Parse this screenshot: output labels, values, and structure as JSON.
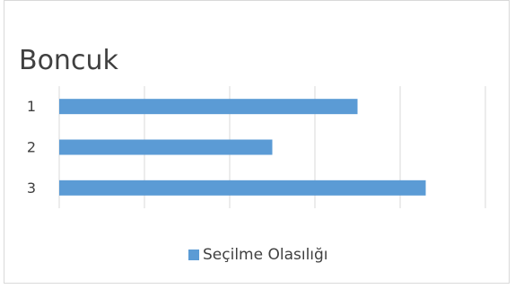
{
  "chart_data": {
    "type": "bar",
    "orientation": "horizontal",
    "title": "Boncuk",
    "categories": [
      "1",
      "2",
      "3"
    ],
    "series": [
      {
        "name": "Seçilme Olasılığı",
        "values": [
          0.35,
          0.25,
          0.43
        ],
        "color": "#5b9bd5"
      }
    ],
    "xlim": [
      0,
      0.5
    ],
    "x_tick_labels_shown": false,
    "grid": true,
    "legend_position": "bottom"
  }
}
